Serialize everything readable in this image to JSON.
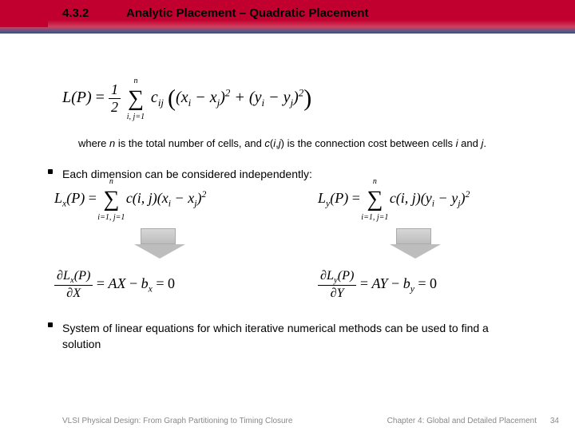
{
  "header": {
    "section_number": "4.3.2",
    "title": "Analytic Placement – Quadratic Placement",
    "bar_gradient_top": "#c2002f",
    "bar_gradient_bottom": "#3a4a7a"
  },
  "formula_main": {
    "lhs": "L(P)",
    "fraction_num": "1",
    "fraction_den": "2",
    "sum_upper": "n",
    "sum_lower": "i, j=1",
    "coef": "c",
    "coef_sub": "ij",
    "term1_a": "x",
    "term1_a_sub": "i",
    "term1_b": "x",
    "term1_b_sub": "j",
    "term2_a": "y",
    "term2_a_sub": "i",
    "term2_b": "y",
    "term2_b_sub": "j",
    "exp": "2"
  },
  "note": {
    "prefix": "where ",
    "n": "n",
    "mid1": " is the total number of cells, and ",
    "c": "c",
    "args_open": "(",
    "i": "i",
    "comma": ",",
    "j": "j",
    "args_close": ")",
    "mid2": " is the connection cost between cells ",
    "i2": "i",
    "and": " and ",
    "j2": "j",
    "end": "."
  },
  "bullets": {
    "b1": "Each dimension can be considered independently:",
    "b2": "System of linear equations for which iterative numerical methods can be used to find a solution"
  },
  "formula_lx": {
    "lhs": "L",
    "lhs_sub": "x",
    "arg": "(P)",
    "eq": " = ",
    "sum_upper": "n",
    "sum_lower": "i=1, j=1",
    "coef": "c(i, j)",
    "var_a": "x",
    "var_a_sub": "i",
    "var_b": "x",
    "var_b_sub": "j",
    "exp": "2"
  },
  "formula_ly": {
    "lhs": "L",
    "lhs_sub": "y",
    "arg": "(P)",
    "eq": " = ",
    "sum_upper": "n",
    "sum_lower": "i=1, j=1",
    "coef": "c(i, j)",
    "var_a": "y",
    "var_a_sub": "i",
    "var_b": "y",
    "var_b_sub": "j",
    "exp": "2"
  },
  "formula_dx": {
    "partial": "∂",
    "num_L": "L",
    "num_sub": "x",
    "num_arg": "(P)",
    "den_var": "X",
    "eq": " = ",
    "rhs_A": "AX",
    "rhs_minus": " − ",
    "rhs_b": "b",
    "rhs_b_sub": "x",
    "rhs_zero": " = 0"
  },
  "formula_dy": {
    "partial": "∂",
    "num_L": "L",
    "num_sub": "y",
    "num_arg": "(P)",
    "den_var": "Y",
    "eq": " = ",
    "rhs_A": "AY",
    "rhs_minus": " − ",
    "rhs_b": "b",
    "rhs_b_sub": "y",
    "rhs_zero": " = 0"
  },
  "footer": {
    "left": "VLSI Physical Design: From Graph Partitioning to Timing Closure",
    "right": "Chapter 4: Global and Detailed Placement",
    "page": "34"
  },
  "arrow": {
    "fill_top": "#d7d7d7",
    "fill_bottom": "#bdbdbd",
    "border": "#aaaaaa"
  }
}
